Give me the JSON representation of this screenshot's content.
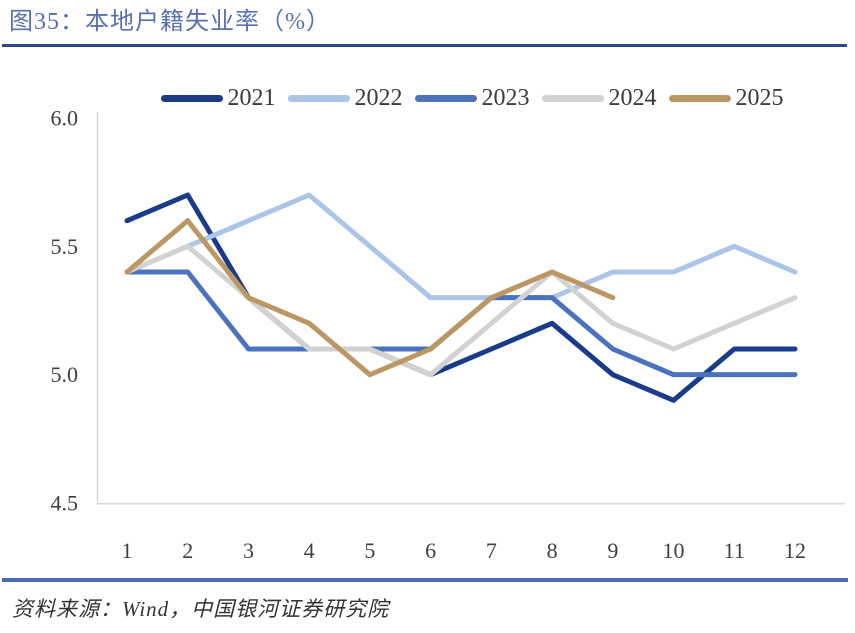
{
  "page": {
    "title": "图35：本地户籍失业率（%）",
    "source": "资料来源：Wind，中国银河证券研究院"
  },
  "colors": {
    "title_text": "#5872AE",
    "title_rule": "#2B4A94",
    "footer_rule": "#4C6CAC",
    "axis_line": "#D9D9D9",
    "tick_text": "#3F3F3F",
    "legend_text": "#3C3C3C"
  },
  "chart_data": {
    "type": "line",
    "title": "本地户籍失业率（%）",
    "xlabel": "",
    "ylabel": "",
    "x": [
      1,
      2,
      3,
      4,
      5,
      6,
      7,
      8,
      9,
      10,
      11,
      12
    ],
    "x_tick_labels": [
      "1",
      "2",
      "3",
      "4",
      "5",
      "6",
      "7",
      "8",
      "9",
      "10",
      "11",
      "12"
    ],
    "y_tick_labels": [
      "6.0",
      "5.5",
      "5.0",
      "4.5"
    ],
    "y_ticks": [
      6.0,
      5.5,
      5.0,
      4.5
    ],
    "ylim": [
      4.5,
      6.0
    ],
    "grid": false,
    "legend_position": "top",
    "series": [
      {
        "name": "2021",
        "color": "#1A3B8A",
        "values": [
          5.6,
          5.7,
          5.3,
          5.1,
          5.1,
          5.0,
          5.1,
          5.2,
          5.0,
          4.9,
          5.1,
          5.1
        ]
      },
      {
        "name": "2022",
        "color": "#AAC5E8",
        "values": [
          5.4,
          5.5,
          5.6,
          5.7,
          5.5,
          5.3,
          5.3,
          5.3,
          5.4,
          5.4,
          5.5,
          5.4
        ]
      },
      {
        "name": "2023",
        "color": "#4B72BC",
        "values": [
          5.4,
          5.4,
          5.1,
          5.1,
          5.1,
          5.1,
          5.3,
          5.3,
          5.1,
          5.0,
          5.0,
          5.0
        ]
      },
      {
        "name": "2024",
        "color": "#D2D2D2",
        "values": [
          5.4,
          5.5,
          5.3,
          5.1,
          5.1,
          5.0,
          5.2,
          5.4,
          5.2,
          5.1,
          5.2,
          5.3
        ]
      },
      {
        "name": "2025",
        "color": "#BD9763",
        "values": [
          5.4,
          5.6,
          5.3,
          5.2,
          5.0,
          5.1,
          5.3,
          5.4,
          5.3
        ]
      }
    ]
  }
}
